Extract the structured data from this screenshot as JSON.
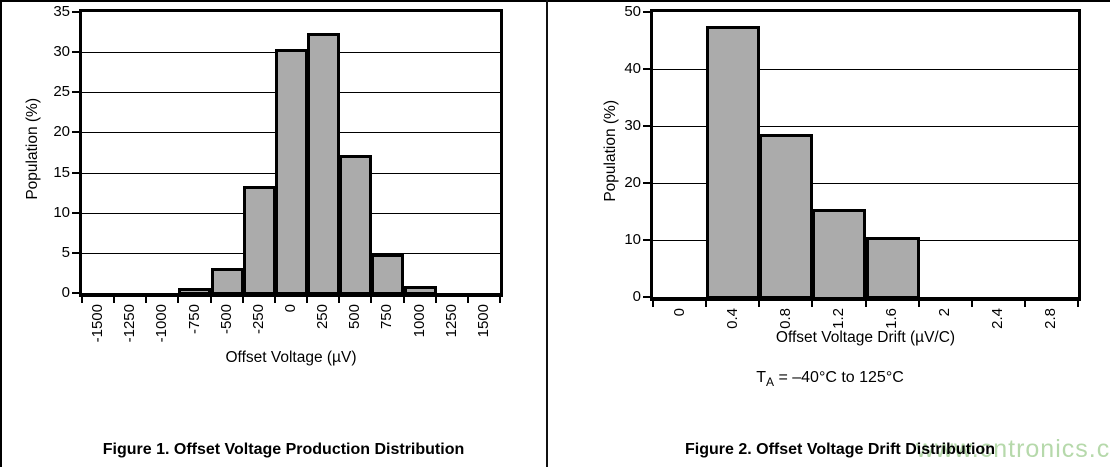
{
  "page": {
    "background": "#ffffff",
    "line_color": "#000000",
    "bar_fill": "#ABABAB"
  },
  "watermark": {
    "text": "www.cntronics.com",
    "color": "#b6d9ab"
  },
  "chart_data": [
    {
      "type": "bar",
      "caption": "Figure 1. Offset Voltage Production Distribution",
      "xlabel": "Offset Voltage (µV)",
      "ylabel": "Population (%)",
      "categories": [
        "-1500",
        "-1250",
        "-1000",
        "-750",
        "-500",
        "-250",
        "0",
        "250",
        "500",
        "750",
        "1000",
        "1250",
        "1500"
      ],
      "values": [
        0,
        0,
        0,
        0.3,
        2.8,
        13,
        30,
        32,
        16.8,
        4.5,
        0.5,
        0,
        0
      ],
      "ylim": [
        0,
        35
      ],
      "ytick_step": 5,
      "grid": true,
      "legend": "none",
      "bar_color": "#ABABAB"
    },
    {
      "type": "bar",
      "caption": "Figure 2. Offset Voltage Drift Distribution",
      "xlabel": "Offset Voltage Drift (µV/C)",
      "ylabel": "Population (%)",
      "categories": [
        "0",
        "0.4",
        "0.8",
        "1.2",
        "1.6",
        "2",
        "2.4",
        "2.8"
      ],
      "values": [
        0,
        47,
        28,
        15,
        10,
        0,
        0,
        0
      ],
      "ylim": [
        0,
        50
      ],
      "ytick_step": 10,
      "grid": true,
      "legend": "none",
      "bar_color": "#ABABAB",
      "condition_t": "T",
      "condition_sub": "A",
      "condition_rest": " = –40°C to 125°C"
    }
  ]
}
